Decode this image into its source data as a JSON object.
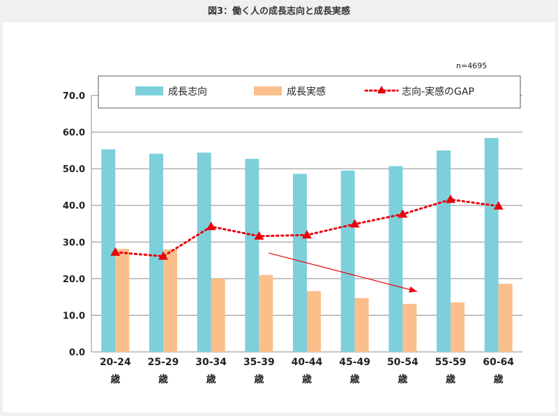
{
  "figure_title": "図3：働く人の成長志向と成長実感",
  "sample_note": "n=4695",
  "colors": {
    "growth_orientation": "#7ecfdc",
    "growth_feeling": "#fbbf8c",
    "gap_line": "#e8000b",
    "grid": "#8c8c8c"
  },
  "chart_data": {
    "type": "bar",
    "title": "",
    "xlabel": "",
    "ylabel": "",
    "ylim": [
      0,
      70
    ],
    "yticks": [
      "0.0",
      "10.0",
      "20.0",
      "30.0",
      "40.0",
      "50.0",
      "60.0",
      "70.0"
    ],
    "categories": [
      "20-24",
      "25-29",
      "30-34",
      "35-39",
      "40-44",
      "45-49",
      "50-54",
      "55-59",
      "60-64"
    ],
    "category_suffix": "歳",
    "legend_position": "top",
    "series": [
      {
        "name": "成長志向",
        "kind": "bar",
        "values": [
          55.3,
          54.1,
          54.4,
          52.7,
          48.6,
          49.5,
          50.7,
          55.0,
          58.4
        ]
      },
      {
        "name": "成長実感",
        "kind": "bar",
        "values": [
          28.1,
          28.0,
          20.0,
          21.0,
          16.6,
          14.7,
          13.1,
          13.5,
          18.6
        ]
      },
      {
        "name": "志向-実感のGAP",
        "kind": "line",
        "values": [
          27.2,
          26.1,
          34.2,
          31.6,
          31.9,
          34.9,
          37.6,
          41.6,
          39.8
        ]
      }
    ],
    "annotations": [
      {
        "type": "arrow",
        "from": {
          "x_index": 3.2,
          "y": 27.0
        },
        "to": {
          "x_index": 6.3,
          "y": 16.5
        }
      }
    ]
  }
}
